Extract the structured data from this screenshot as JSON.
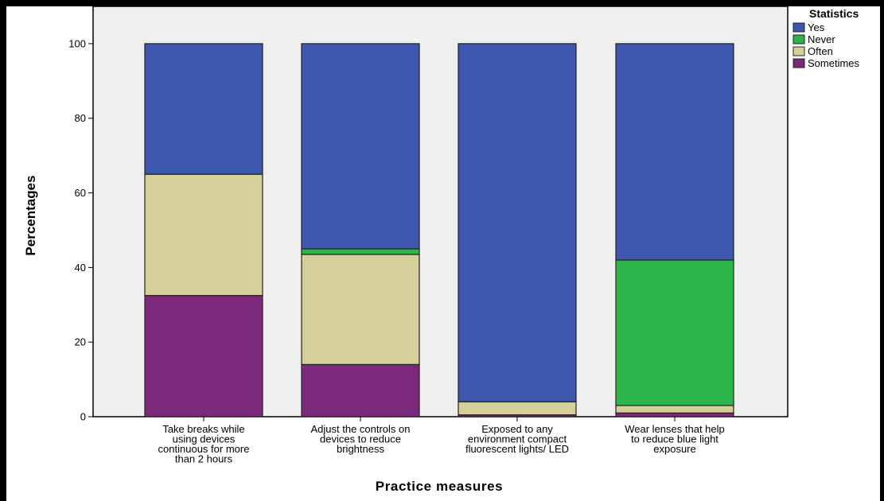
{
  "chart_data": {
    "type": "bar",
    "stacked": true,
    "title": "",
    "xlabel": "Practice measures",
    "ylabel": "Percentages",
    "ylim": [
      0,
      110
    ],
    "yticks": [
      0,
      20,
      40,
      60,
      80,
      100
    ],
    "grid": false,
    "legend": {
      "title": "Statistics",
      "position": "top-right"
    },
    "categories": [
      [
        "Take breaks while",
        "using devices",
        "continuous for more",
        "than 2 hours"
      ],
      [
        "Adjust the controls on",
        "devices to reduce",
        "brightness"
      ],
      [
        "Exposed to any",
        "environment compact",
        "fluorescent lights/ LED"
      ],
      [
        "Wear lenses that help",
        "to reduce blue light",
        "exposure"
      ]
    ],
    "series": [
      {
        "name": "Sometimes",
        "color": "#7b2a7b",
        "values": [
          32.5,
          14,
          0.5,
          1
        ]
      },
      {
        "name": "Often",
        "color": "#d5d09a",
        "values": [
          32.5,
          29.5,
          3.5,
          2
        ]
      },
      {
        "name": "Never",
        "color": "#2db44a",
        "values": [
          0,
          1.5,
          0,
          39
        ]
      },
      {
        "name": "Yes",
        "color": "#3c57ad",
        "values": [
          35,
          55,
          96,
          58
        ]
      }
    ],
    "legend_order": [
      "Yes",
      "Never",
      "Often",
      "Sometimes"
    ],
    "plot_background": "#efefef"
  }
}
